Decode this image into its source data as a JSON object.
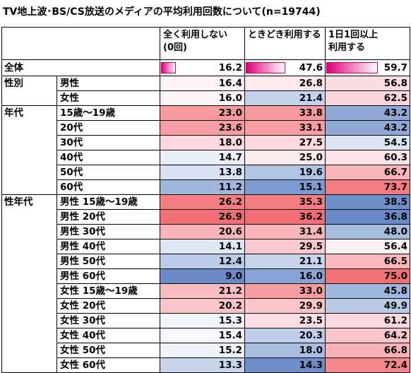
{
  "title": "TV地上波･BS/CS放送のメディアの平均利用回数について(n=19744)",
  "columns": [
    "全く利用しない\n(0回)",
    "ときどき利用する",
    "1日1回以上\n利用する"
  ],
  "total": {
    "label": "全体",
    "values": [
      "16.2",
      "47.6",
      "59.7"
    ],
    "bar_fraction": [
      0.162,
      0.476,
      0.597
    ]
  },
  "groups": [
    {
      "label": "性別",
      "rows": [
        {
          "label": "男性",
          "values": [
            "16.4",
            "26.8",
            "56.8"
          ],
          "colors": [
            "#fdf3f5",
            "#fbe9ec",
            "#fbdde2"
          ]
        },
        {
          "label": "女性",
          "values": [
            "16.0",
            "21.4",
            "62.5"
          ],
          "colors": [
            "#fdf4f6",
            "#c4d3eb",
            "#fbd5db"
          ]
        }
      ]
    },
    {
      "label": "年代",
      "rows": [
        {
          "label": "15歳～19歳",
          "values": [
            "23.0",
            "33.8",
            "43.2"
          ],
          "colors": [
            "#f69a9d",
            "#f69a9d",
            "#8ea9d6"
          ]
        },
        {
          "label": "20代",
          "values": [
            "23.6",
            "33.1",
            "43.2"
          ],
          "colors": [
            "#f79da0",
            "#f79da0",
            "#8ea9d6"
          ]
        },
        {
          "label": "30代",
          "values": [
            "18.0",
            "27.5",
            "54.5"
          ],
          "colors": [
            "#fbd8dd",
            "#fbd8dd",
            "#dbe4f3"
          ]
        },
        {
          "label": "40代",
          "values": [
            "14.7",
            "25.0",
            "60.3"
          ],
          "colors": [
            "#e9eef7",
            "#fbe9ec",
            "#fbe3e7"
          ]
        },
        {
          "label": "50代",
          "values": [
            "13.8",
            "19.6",
            "66.7"
          ],
          "colors": [
            "#d8e2f2",
            "#b2c4e4",
            "#f8b4b9"
          ]
        },
        {
          "label": "60代",
          "values": [
            "11.2",
            "15.1",
            "73.7"
          ],
          "colors": [
            "#9fb6dd",
            "#7c9bd0",
            "#f47b80"
          ]
        }
      ]
    },
    {
      "label": "性年代",
      "rows": [
        {
          "label": "男性 15歳～19歳",
          "values": [
            "26.2",
            "35.3",
            "38.5"
          ],
          "colors": [
            "#f47e82",
            "#f47e82",
            "#6f8fca"
          ]
        },
        {
          "label": "男性 20代",
          "values": [
            "26.9",
            "36.2",
            "36.8"
          ],
          "colors": [
            "#f27075",
            "#f27075",
            "#6a8bc8"
          ]
        },
        {
          "label": "男性 30代",
          "values": [
            "20.6",
            "31.4",
            "48.0"
          ],
          "colors": [
            "#f8b4b9",
            "#f8b4b9",
            "#a7bde0"
          ]
        },
        {
          "label": "男性 40代",
          "values": [
            "14.1",
            "29.5",
            "56.4"
          ],
          "colors": [
            "#dee6f4",
            "#f9c9ce",
            "#fbf0f2"
          ]
        },
        {
          "label": "男性 50代",
          "values": [
            "12.4",
            "21.1",
            "66.5"
          ],
          "colors": [
            "#bccce8",
            "#c8d5ec",
            "#f9b7bc"
          ]
        },
        {
          "label": "男性 60代",
          "values": [
            "9.0",
            "16.0",
            "75.0"
          ],
          "colors": [
            "#6a8bc8",
            "#8aa5d5",
            "#f26f74"
          ]
        },
        {
          "label": "女性 15歳～19歳",
          "values": [
            "21.2",
            "33.0",
            "45.8"
          ],
          "colors": [
            "#f9bcc1",
            "#f79da0",
            "#a0b7dd"
          ]
        },
        {
          "label": "女性 20代",
          "values": [
            "20.2",
            "29.9",
            "49.9"
          ],
          "colors": [
            "#f9c5c9",
            "#f9c5c9",
            "#b9cae7"
          ]
        },
        {
          "label": "女性 30代",
          "values": [
            "15.3",
            "23.5",
            "61.2"
          ],
          "colors": [
            "#f2f5fb",
            "#fbdde2",
            "#fbd8dd"
          ]
        },
        {
          "label": "女性 40代",
          "values": [
            "15.4",
            "20.3",
            "64.2"
          ],
          "colors": [
            "#f6f8fc",
            "#c0cfe9",
            "#fac5ca"
          ]
        },
        {
          "label": "女性 50代",
          "values": [
            "15.2",
            "18.0",
            "66.8"
          ],
          "colors": [
            "#eef2f9",
            "#a8bde0",
            "#f8b3b8"
          ]
        },
        {
          "label": "女性 60代",
          "values": [
            "13.3",
            "14.3",
            "72.4"
          ],
          "colors": [
            "#c7d4ec",
            "#6d8ec9",
            "#f5878c"
          ]
        }
      ]
    }
  ],
  "accent_colors": {
    "total_bar": "#e0007a",
    "high": "#f26f74",
    "low": "#6a8bc8"
  }
}
